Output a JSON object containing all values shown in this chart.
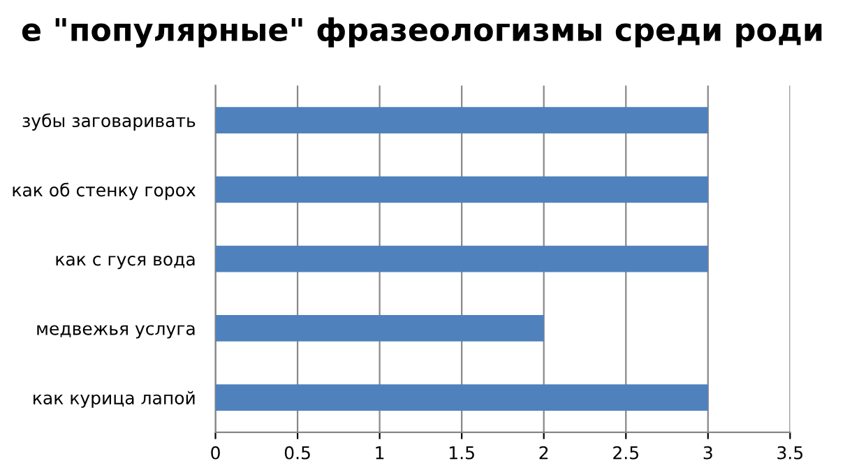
{
  "chart_data": {
    "type": "bar",
    "orientation": "horizontal",
    "title": "е \"популярные\" фразеологизмы среди роди",
    "categories": [
      "зубы заговаривать",
      "как об стенку горох",
      "как с гуся вода",
      "медвежья услуга",
      "как курица лапой"
    ],
    "series": [
      {
        "color": "#4f81bd",
        "values": [
          3,
          3,
          3,
          2,
          3
        ]
      }
    ],
    "xlim": [
      0,
      3.5
    ],
    "xticks": [
      0,
      0.5,
      1,
      1.5,
      2,
      2.5,
      3,
      3.5
    ],
    "grid": "x",
    "legend": false
  }
}
